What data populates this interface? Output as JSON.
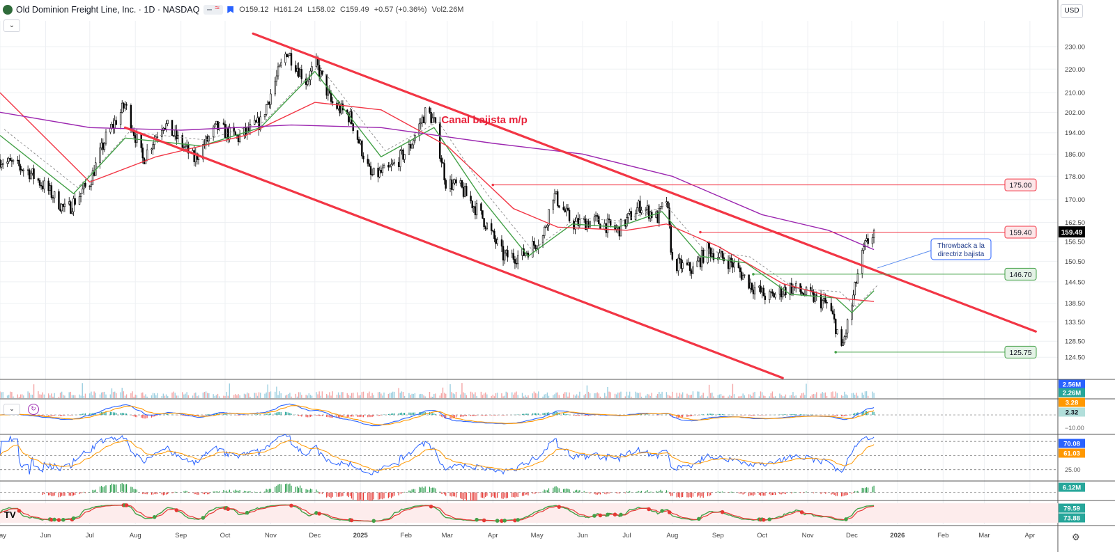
{
  "header": {
    "title": "Old Dominion Freight Line, Inc. · 1D · NASDAQ",
    "open": "O159.12",
    "high": "H161.24",
    "low": "L158.02",
    "close": "C159.49",
    "change": "+0.57 (+0.36%)",
    "volume": "Vol2.26M"
  },
  "currency_button": "USD",
  "logo_mark": "TV",
  "icons": [
    "logo-icon",
    "chevron-down-icon",
    "flag-icon",
    "refresh-icon",
    "gear-icon"
  ],
  "colors": {
    "up": "#26a69a",
    "down": "#ef5350",
    "candle": "#000000",
    "channel": "#f23645",
    "sma_short": "#43a047",
    "sma_mid": "#f23645",
    "sma_long": "#9c27b0",
    "macd": "#2962ff",
    "signal": "#ff9800"
  },
  "chart_data": [
    {
      "type": "candlestick",
      "title": "Old Dominion Freight Line, Inc. · 1D · NASDAQ",
      "y_scale": "log",
      "ylim": [
        119.5,
        242
      ],
      "y_ticks": [
        "124.50",
        "128.50",
        "133.50",
        "138.50",
        "144.50",
        "150.50",
        "156.50",
        "162.50",
        "170.00",
        "178.00",
        "186.00",
        "194.00",
        "202.00",
        "210.00",
        "220.00",
        "230.00"
      ],
      "x_ticks": [
        "May",
        "Jun",
        "Jul",
        "Aug",
        "Sep",
        "Oct",
        "Nov",
        "Dec",
        "2025",
        "Feb",
        "Mar",
        "Apr",
        "May",
        "Jun",
        "Jul",
        "Aug",
        "Sep",
        "Oct",
        "Nov",
        "Dec",
        "2026",
        "Feb",
        "Mar",
        "Apr"
      ],
      "x_range": [
        "2024-05-01",
        "2026-04-20"
      ],
      "grid": true,
      "close_path": [
        {
          "date": "2024-05-01",
          "close": 184
        },
        {
          "date": "2024-05-20",
          "close": 180
        },
        {
          "date": "2024-06-05",
          "close": 172
        },
        {
          "date": "2024-06-15",
          "close": 166
        },
        {
          "date": "2024-07-01",
          "close": 176
        },
        {
          "date": "2024-07-12",
          "close": 192
        },
        {
          "date": "2024-07-25",
          "close": 205
        },
        {
          "date": "2024-08-06",
          "close": 184
        },
        {
          "date": "2024-08-20",
          "close": 198
        },
        {
          "date": "2024-09-10",
          "close": 184
        },
        {
          "date": "2024-09-25",
          "close": 196
        },
        {
          "date": "2024-10-10",
          "close": 192
        },
        {
          "date": "2024-10-25",
          "close": 198
        },
        {
          "date": "2024-11-06",
          "close": 218
        },
        {
          "date": "2024-11-12",
          "close": 228
        },
        {
          "date": "2024-11-25",
          "close": 215
        },
        {
          "date": "2024-12-02",
          "close": 222
        },
        {
          "date": "2024-12-12",
          "close": 206
        },
        {
          "date": "2024-12-25",
          "close": 200
        },
        {
          "date": "2025-01-08",
          "close": 178
        },
        {
          "date": "2025-01-20",
          "close": 180
        },
        {
          "date": "2025-02-03",
          "close": 188
        },
        {
          "date": "2025-02-15",
          "close": 203
        },
        {
          "date": "2025-02-20",
          "close": 198
        },
        {
          "date": "2025-02-28",
          "close": 176
        },
        {
          "date": "2025-03-10",
          "close": 174
        },
        {
          "date": "2025-03-25",
          "close": 164
        },
        {
          "date": "2025-04-08",
          "close": 152
        },
        {
          "date": "2025-04-20",
          "close": 152
        },
        {
          "date": "2025-05-05",
          "close": 158
        },
        {
          "date": "2025-05-12",
          "close": 172
        },
        {
          "date": "2025-05-25",
          "close": 162
        },
        {
          "date": "2025-06-10",
          "close": 163
        },
        {
          "date": "2025-06-25",
          "close": 160
        },
        {
          "date": "2025-07-10",
          "close": 168
        },
        {
          "date": "2025-07-22",
          "close": 164
        },
        {
          "date": "2025-07-28",
          "close": 170
        },
        {
          "date": "2025-08-01",
          "close": 150
        },
        {
          "date": "2025-08-15",
          "close": 148
        },
        {
          "date": "2025-08-25",
          "close": 154
        },
        {
          "date": "2025-09-10",
          "close": 150
        },
        {
          "date": "2025-09-25",
          "close": 143
        },
        {
          "date": "2025-10-05",
          "close": 140
        },
        {
          "date": "2025-10-20",
          "close": 143
        },
        {
          "date": "2025-11-05",
          "close": 140
        },
        {
          "date": "2025-11-15",
          "close": 138
        },
        {
          "date": "2025-11-22",
          "close": 130
        },
        {
          "date": "2025-11-24",
          "close": 126
        },
        {
          "date": "2025-12-01",
          "close": 138
        },
        {
          "date": "2025-12-06",
          "close": 149
        },
        {
          "date": "2025-12-10",
          "close": 155
        },
        {
          "date": "2025-12-16",
          "close": 159.49
        }
      ],
      "moving_averages": [
        {
          "color_key": "sma_short",
          "values": [
            {
              "date": "2024-05-01",
              "v": 193
            },
            {
              "date": "2024-06-20",
              "v": 172
            },
            {
              "date": "2024-07-25",
              "v": 192
            },
            {
              "date": "2024-09-15",
              "v": 189
            },
            {
              "date": "2024-10-25",
              "v": 196
            },
            {
              "date": "2024-12-01",
              "v": 219
            },
            {
              "date": "2025-01-15",
              "v": 185
            },
            {
              "date": "2025-02-20",
              "v": 196
            },
            {
              "date": "2025-03-25",
              "v": 170
            },
            {
              "date": "2025-04-25",
              "v": 152
            },
            {
              "date": "2025-05-25",
              "v": 162
            },
            {
              "date": "2025-06-25",
              "v": 161
            },
            {
              "date": "2025-07-25",
              "v": 166
            },
            {
              "date": "2025-08-20",
              "v": 152
            },
            {
              "date": "2025-09-20",
              "v": 150
            },
            {
              "date": "2025-10-20",
              "v": 141
            },
            {
              "date": "2025-11-20",
              "v": 140
            },
            {
              "date": "2025-12-01",
              "v": 136
            },
            {
              "date": "2025-12-16",
              "v": 142
            }
          ]
        },
        {
          "color_key": "sma_mid",
          "values": [
            {
              "date": "2024-05-01",
              "v": 210
            },
            {
              "date": "2024-07-01",
              "v": 176
            },
            {
              "date": "2024-08-15",
              "v": 185
            },
            {
              "date": "2024-10-15",
              "v": 193
            },
            {
              "date": "2024-12-01",
              "v": 206
            },
            {
              "date": "2025-01-15",
              "v": 203
            },
            {
              "date": "2025-03-01",
              "v": 189
            },
            {
              "date": "2025-04-15",
              "v": 167
            },
            {
              "date": "2025-05-15",
              "v": 161
            },
            {
              "date": "2025-07-01",
              "v": 160
            },
            {
              "date": "2025-07-28",
              "v": 162
            },
            {
              "date": "2025-09-01",
              "v": 155
            },
            {
              "date": "2025-10-15",
              "v": 144
            },
            {
              "date": "2025-11-20",
              "v": 140
            },
            {
              "date": "2025-12-16",
              "v": 139
            }
          ]
        },
        {
          "color_key": "sma_long",
          "values": [
            {
              "date": "2024-05-01",
              "v": 202
            },
            {
              "date": "2024-07-01",
              "v": 196
            },
            {
              "date": "2024-09-01",
              "v": 195
            },
            {
              "date": "2024-11-15",
              "v": 197
            },
            {
              "date": "2025-01-15",
              "v": 196
            },
            {
              "date": "2025-04-01",
              "v": 190
            },
            {
              "date": "2025-06-01",
              "v": 186
            },
            {
              "date": "2025-08-01",
              "v": 178
            },
            {
              "date": "2025-10-01",
              "v": 165
            },
            {
              "date": "2025-11-15",
              "v": 160
            },
            {
              "date": "2025-12-16",
              "v": 154
            }
          ]
        }
      ],
      "trend_lines": [
        {
          "label": "Canal bajista m/p",
          "from": {
            "date": "2024-10-20",
            "price": 236
          },
          "to": {
            "date": "2026-04-05",
            "price": 131
          }
        },
        {
          "label": "",
          "from": {
            "date": "2024-07-25",
            "price": 196
          },
          "to": {
            "date": "2025-10-15",
            "price": 119.5
          }
        }
      ],
      "horizontal_levels": [
        {
          "label": "175.00",
          "price": 175.0,
          "start": "2025-04-01",
          "color": "#f23645"
        },
        {
          "label": "159.40",
          "price": 159.4,
          "start": "2025-08-20",
          "color": "#f23645"
        },
        {
          "label": "146.70",
          "price": 146.7,
          "start": "2025-09-25",
          "color": "#43a047"
        },
        {
          "label": "125.75",
          "price": 125.75,
          "start": "2025-11-20",
          "color": "#43a047"
        }
      ],
      "annotations": [
        {
          "text": "Canal bajista m/p",
          "date": "2025-02-25",
          "price": 199
        },
        {
          "text": "Throwback a la directriz bajista",
          "date": "2026-01-25",
          "price": 151
        }
      ],
      "last_price_label": "159.49"
    },
    {
      "type": "bar",
      "title": "",
      "panel": "volume",
      "last_labels": [
        "2.56M",
        "2.26M"
      ]
    },
    {
      "type": "line",
      "title": "",
      "panel": "macd",
      "last_labels": [
        "3.28",
        "2.32"
      ],
      "y_tick": "−10.00"
    },
    {
      "type": "line",
      "title": "",
      "panel": "oscillator",
      "ylim": [
        0,
        100
      ],
      "levels": [
        70,
        50,
        30
      ],
      "last_labels": [
        "70.08",
        "61.03"
      ],
      "y_tick": "25.00"
    },
    {
      "type": "bar",
      "title": "",
      "panel": "flow",
      "last_labels": [
        "6.12M"
      ]
    },
    {
      "type": "line",
      "title": "",
      "panel": "stochastic",
      "last_labels": [
        "79.59",
        "73.88"
      ]
    }
  ]
}
